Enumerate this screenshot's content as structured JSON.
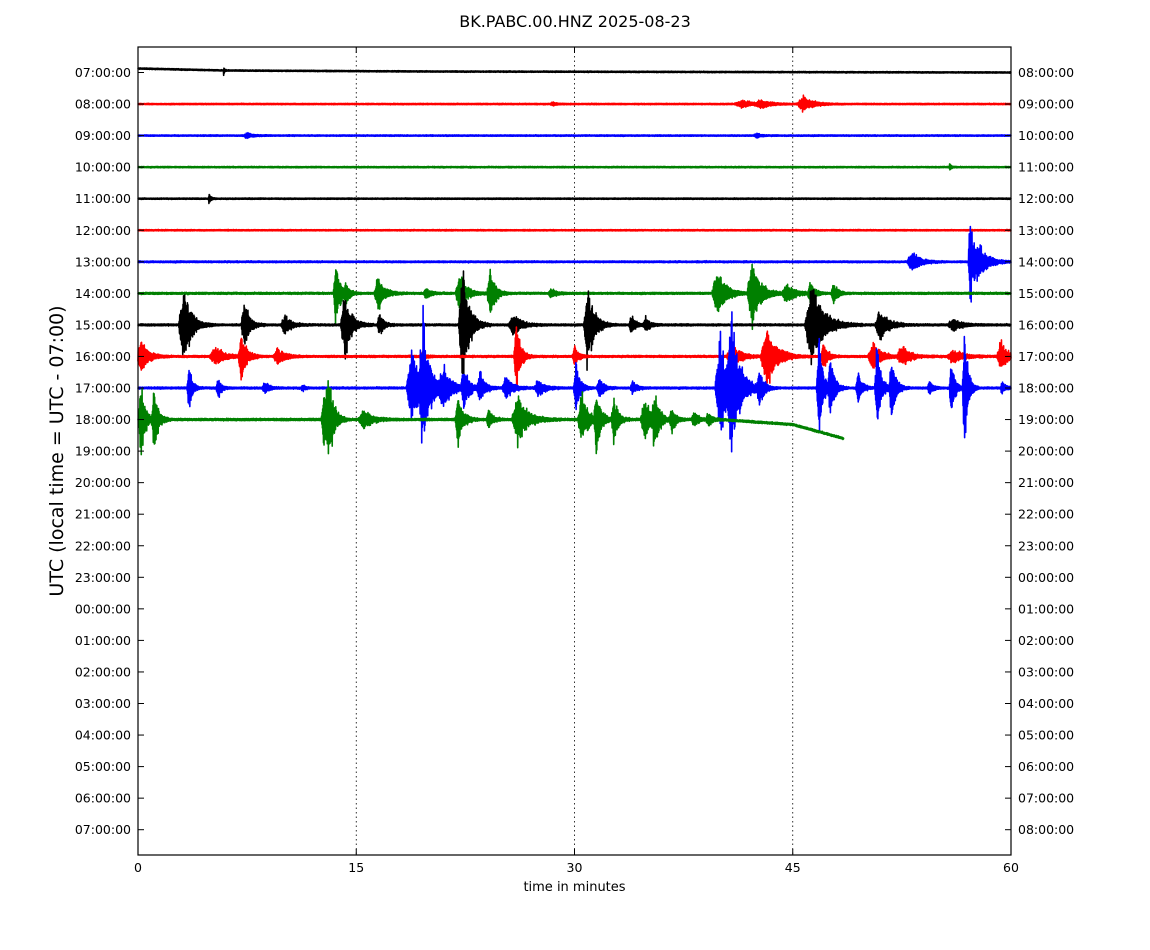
{
  "chart_data": {
    "type": "line",
    "title": "BK.PABC.00.HNZ 2025-08-23",
    "xlabel": "time in minutes",
    "ylabel": "UTC (local time = UTC - 07:00)",
    "xlim": [
      0,
      60
    ],
    "x_ticks": [
      0,
      15,
      30,
      45,
      60
    ],
    "grid_x": [
      15,
      30,
      45
    ],
    "left_tick_labels": [
      "07:00:00",
      "08:00:00",
      "09:00:00",
      "10:00:00",
      "11:00:00",
      "12:00:00",
      "13:00:00",
      "14:00:00",
      "15:00:00",
      "16:00:00",
      "17:00:00",
      "18:00:00",
      "19:00:00",
      "20:00:00",
      "21:00:00",
      "22:00:00",
      "23:00:00",
      "00:00:00",
      "01:00:00",
      "02:00:00",
      "03:00:00",
      "04:00:00",
      "05:00:00",
      "06:00:00",
      "07:00:00"
    ],
    "right_tick_labels": [
      "08:00:00",
      "09:00:00",
      "10:00:00",
      "11:00:00",
      "12:00:00",
      "13:00:00",
      "14:00:00",
      "15:00:00",
      "16:00:00",
      "17:00:00",
      "18:00:00",
      "19:00:00",
      "20:00:00",
      "21:00:00",
      "22:00:00",
      "23:00:00",
      "00:00:00",
      "01:00:00",
      "02:00:00",
      "03:00:00",
      "04:00:00",
      "05:00:00",
      "06:00:00",
      "07:00:00",
      "08:00:00"
    ],
    "color_cycle": [
      "#000000",
      "#ff0000",
      "#0000ff",
      "#008000"
    ],
    "series": [
      {
        "row": 0,
        "color": "#000000",
        "end_min": 60,
        "noise": 0.8,
        "drift": [
          [
            0,
            -4
          ],
          [
            6,
            -2
          ],
          [
            20,
            -1
          ],
          [
            60,
            0
          ]
        ],
        "events": [
          [
            5.9,
            6,
            0.1
          ]
        ]
      },
      {
        "row": 1,
        "color": "#ff0000",
        "end_min": 60,
        "noise": 0.8,
        "events": [
          [
            41.5,
            4,
            1.5
          ],
          [
            42.8,
            5,
            1.0
          ],
          [
            45.7,
            9,
            1.2
          ],
          [
            28.5,
            2,
            0.5
          ]
        ]
      },
      {
        "row": 2,
        "color": "#0000ff",
        "end_min": 60,
        "noise": 0.8,
        "events": [
          [
            7.5,
            3,
            0.8
          ],
          [
            42.5,
            3,
            0.5
          ]
        ]
      },
      {
        "row": 3,
        "color": "#008000",
        "end_min": 60,
        "noise": 0.8,
        "events": [
          [
            55.8,
            4,
            0.2
          ]
        ]
      },
      {
        "row": 4,
        "color": "#000000",
        "end_min": 60,
        "noise": 0.8,
        "events": [
          [
            4.9,
            6,
            0.2
          ]
        ]
      },
      {
        "row": 5,
        "color": "#ff0000",
        "end_min": 60,
        "noise": 0.8,
        "events": []
      },
      {
        "row": 6,
        "color": "#0000ff",
        "end_min": 60,
        "noise": 1.0,
        "events": [
          [
            53.2,
            12,
            1.0
          ],
          [
            57.2,
            60,
            0.4
          ],
          [
            57.8,
            18,
            1.2
          ]
        ]
      },
      {
        "row": 7,
        "color": "#008000",
        "end_min": 60,
        "noise": 1.2,
        "events": [
          [
            13.6,
            40,
            0.5
          ],
          [
            14.3,
            10,
            0.5
          ],
          [
            16.5,
            20,
            0.8
          ],
          [
            19.8,
            6,
            0.6
          ],
          [
            22.1,
            24,
            0.8
          ],
          [
            24.2,
            30,
            0.6
          ],
          [
            28.4,
            6,
            0.6
          ],
          [
            39.8,
            30,
            1.0
          ],
          [
            42.2,
            40,
            1.0
          ],
          [
            44.6,
            12,
            1.0
          ],
          [
            46.2,
            15,
            0.5
          ],
          [
            47.8,
            14,
            0.5
          ]
        ]
      },
      {
        "row": 8,
        "color": "#000000",
        "end_min": 60,
        "noise": 1.2,
        "events": [
          [
            3.1,
            48,
            0.9
          ],
          [
            7.3,
            32,
            0.6
          ],
          [
            10.1,
            12,
            0.8
          ],
          [
            14.2,
            40,
            0.8
          ],
          [
            16.6,
            14,
            0.5
          ],
          [
            22.3,
            70,
            0.8
          ],
          [
            25.8,
            12,
            1.0
          ],
          [
            30.9,
            50,
            0.8
          ],
          [
            33.9,
            12,
            0.5
          ],
          [
            34.9,
            8,
            0.6
          ],
          [
            46.3,
            50,
            1.4
          ],
          [
            51.0,
            20,
            1.0
          ],
          [
            56.0,
            8,
            1.0
          ]
        ]
      },
      {
        "row": 9,
        "color": "#ff0000",
        "end_min": 60,
        "noise": 1.2,
        "events": [
          [
            0.2,
            22,
            0.8
          ],
          [
            5.3,
            10,
            1.2
          ],
          [
            7.1,
            30,
            0.6
          ],
          [
            9.6,
            10,
            0.9
          ],
          [
            19.5,
            4,
            0.5
          ],
          [
            26.0,
            45,
            0.5
          ],
          [
            30.0,
            12,
            0.5
          ],
          [
            40.8,
            16,
            1.0
          ],
          [
            43.2,
            35,
            1.2
          ],
          [
            47.1,
            18,
            0.5
          ],
          [
            50.5,
            16,
            1.0
          ],
          [
            52.5,
            12,
            1.0
          ],
          [
            56.0,
            8,
            1.2
          ],
          [
            59.3,
            18,
            0.8
          ]
        ]
      },
      {
        "row": 10,
        "color": "#0000ff",
        "end_min": 60,
        "noise": 1.2,
        "events": [
          [
            3.5,
            30,
            0.4
          ],
          [
            5.5,
            12,
            0.4
          ],
          [
            8.7,
            8,
            0.5
          ],
          [
            11.3,
            4,
            0.3
          ],
          [
            18.8,
            50,
            1.0
          ],
          [
            19.6,
            70,
            0.8
          ],
          [
            21.0,
            25,
            1.0
          ],
          [
            22.4,
            25,
            0.6
          ],
          [
            23.5,
            20,
            0.6
          ],
          [
            25.3,
            15,
            0.8
          ],
          [
            27.5,
            10,
            0.8
          ],
          [
            30.1,
            30,
            0.5
          ],
          [
            31.7,
            15,
            0.5
          ],
          [
            34.0,
            8,
            0.5
          ],
          [
            40.0,
            60,
            1.0
          ],
          [
            40.8,
            70,
            1.0
          ],
          [
            42.7,
            20,
            0.6
          ],
          [
            46.8,
            60,
            0.5
          ],
          [
            47.6,
            40,
            0.5
          ],
          [
            49.5,
            20,
            0.5
          ],
          [
            50.8,
            50,
            0.5
          ],
          [
            51.8,
            40,
            0.5
          ],
          [
            54.4,
            10,
            0.4
          ],
          [
            55.9,
            40,
            0.4
          ],
          [
            56.8,
            80,
            0.4
          ],
          [
            59.4,
            8,
            0.4
          ]
        ]
      },
      {
        "row": 11,
        "color": "#008000",
        "end_min": 48.5,
        "noise": 1.4,
        "drift": [
          [
            0,
            0
          ],
          [
            40,
            0
          ],
          [
            45,
            5
          ],
          [
            48.5,
            19
          ]
        ],
        "events": [
          [
            0.2,
            50,
            0.5
          ],
          [
            1.1,
            40,
            0.5
          ],
          [
            12.8,
            40,
            0.6
          ],
          [
            13.1,
            40,
            0.6
          ],
          [
            15.5,
            12,
            1.0
          ],
          [
            22.0,
            35,
            0.6
          ],
          [
            24.1,
            12,
            0.5
          ],
          [
            26.1,
            30,
            1.2
          ],
          [
            30.5,
            30,
            0.8
          ],
          [
            31.5,
            40,
            0.5
          ],
          [
            32.7,
            30,
            0.5
          ],
          [
            34.8,
            25,
            0.8
          ],
          [
            35.5,
            30,
            0.6
          ],
          [
            36.7,
            15,
            0.5
          ],
          [
            38.2,
            10,
            0.5
          ],
          [
            39.2,
            8,
            0.5
          ]
        ]
      }
    ]
  }
}
